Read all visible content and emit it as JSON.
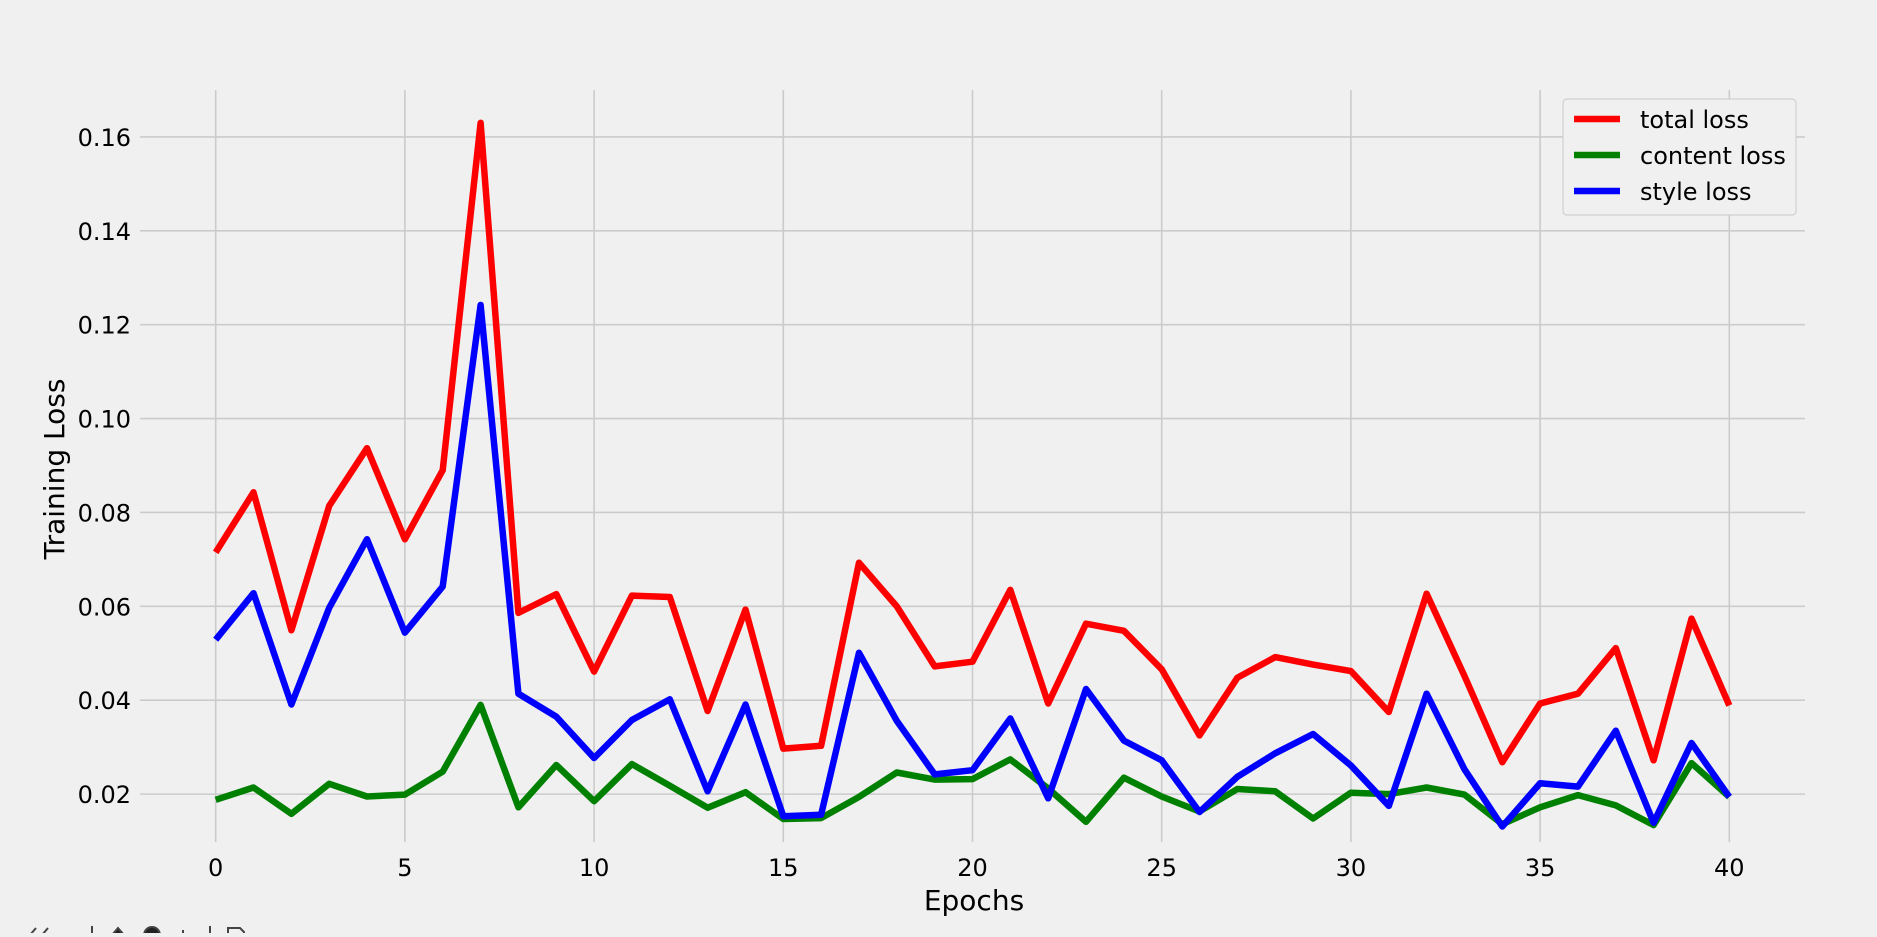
{
  "chart_data": {
    "type": "line",
    "title": "",
    "xlabel": "Epochs",
    "ylabel": "Training Loss",
    "xlim": [
      -2,
      42
    ],
    "ylim": [
      0.0098,
      0.17
    ],
    "xticks": [
      0,
      5,
      10,
      15,
      20,
      25,
      30,
      35,
      40
    ],
    "xtick_labels": [
      "0",
      "5",
      "10",
      "15",
      "20",
      "25",
      "30",
      "35",
      "40"
    ],
    "yticks": [
      0.02,
      0.04,
      0.06,
      0.08,
      0.1,
      0.12,
      0.14,
      0.16
    ],
    "ytick_labels": [
      "0.02",
      "0.04",
      "0.06",
      "0.08",
      "0.10",
      "0.12",
      "0.14",
      "0.16"
    ],
    "grid": true,
    "legend_position": "top-right",
    "x": [
      0,
      1,
      2,
      3,
      4,
      5,
      6,
      7,
      8,
      9,
      10,
      11,
      12,
      13,
      14,
      15,
      16,
      17,
      18,
      19,
      20,
      21,
      22,
      23,
      24,
      25,
      26,
      27,
      28,
      29,
      30,
      31,
      32,
      33,
      34,
      35,
      36,
      37,
      38,
      39,
      40
    ],
    "series": [
      {
        "name": "total loss",
        "color": "#ff0000",
        "values": [
          0.0715,
          0.0843,
          0.0549,
          0.0814,
          0.0937,
          0.0743,
          0.089,
          0.163,
          0.0586,
          0.0626,
          0.0461,
          0.0623,
          0.062,
          0.0377,
          0.0593,
          0.0297,
          0.0303,
          0.0693,
          0.06,
          0.0472,
          0.0482,
          0.0635,
          0.0393,
          0.0563,
          0.0548,
          0.0466,
          0.0325,
          0.0448,
          0.0492,
          0.0476,
          0.0462,
          0.0375,
          0.0627,
          0.0452,
          0.0268,
          0.0393,
          0.0414,
          0.0511,
          0.0272,
          0.0574,
          0.0389
        ]
      },
      {
        "name": "content loss",
        "color": "#008000",
        "values": [
          0.0188,
          0.0214,
          0.0158,
          0.0222,
          0.0195,
          0.0199,
          0.0248,
          0.039,
          0.0172,
          0.0262,
          0.0185,
          0.0264,
          0.0218,
          0.0171,
          0.0204,
          0.0147,
          0.0149,
          0.0194,
          0.0246,
          0.0231,
          0.0232,
          0.0274,
          0.0212,
          0.0141,
          0.0235,
          0.0195,
          0.0163,
          0.0211,
          0.0206,
          0.0148,
          0.0203,
          0.02,
          0.0214,
          0.0199,
          0.0136,
          0.0172,
          0.0198,
          0.0176,
          0.0134,
          0.0266,
          0.0194
        ]
      },
      {
        "name": "style loss",
        "color": "#0000ff",
        "values": [
          0.0529,
          0.0628,
          0.0391,
          0.0597,
          0.0743,
          0.0544,
          0.0642,
          0.1242,
          0.0414,
          0.0365,
          0.0277,
          0.0358,
          0.0402,
          0.0206,
          0.0391,
          0.0153,
          0.0156,
          0.0501,
          0.0356,
          0.0242,
          0.0251,
          0.0361,
          0.0191,
          0.0424,
          0.0314,
          0.0272,
          0.0162,
          0.0237,
          0.0287,
          0.0328,
          0.0261,
          0.0175,
          0.0414,
          0.0253,
          0.0131,
          0.0223,
          0.0216,
          0.0335,
          0.0139,
          0.0309,
          0.0194
        ]
      }
    ]
  }
}
